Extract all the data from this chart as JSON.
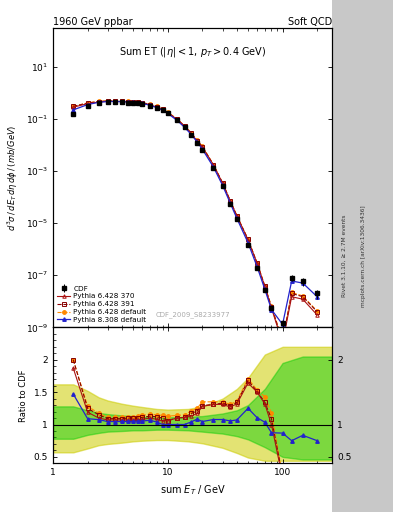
{
  "title_left": "1960 GeV ppbar",
  "title_right": "Soft QCD",
  "plot_label": "Sum ET (|\\eta| < 1, p_{T} > 0.4 GeV)",
  "watermark": "CDF_2009_S8233977",
  "xlim": [
    1.0,
    270.0
  ],
  "ylim_main": [
    1e-09,
    300.0
  ],
  "ylim_ratio": [
    0.4,
    2.5
  ],
  "cdf_x": [
    1.5,
    2.0,
    2.5,
    3.0,
    3.5,
    4.0,
    4.5,
    5.0,
    5.5,
    6.0,
    7.0,
    8.0,
    9.0,
    10.0,
    12.0,
    14.0,
    16.0,
    18.0,
    20.0,
    25.0,
    30.0,
    35.0,
    40.0,
    50.0,
    60.0,
    70.0,
    80.0,
    100.0,
    120.0,
    150.0,
    200.0
  ],
  "cdf_y": [
    0.15,
    0.32,
    0.4,
    0.44,
    0.44,
    0.43,
    0.42,
    0.41,
    0.39,
    0.37,
    0.31,
    0.26,
    0.21,
    0.16,
    0.088,
    0.047,
    0.024,
    0.012,
    0.0065,
    0.0013,
    0.00026,
    5.5e-05,
    1.4e-05,
    1.4e-06,
    1.9e-07,
    2.8e-08,
    5.5e-09,
    1.5e-09,
    8e-08,
    6e-08,
    2e-08
  ],
  "cdf_yerr_lo": [
    0.02,
    0.02,
    0.02,
    0.02,
    0.02,
    0.02,
    0.02,
    0.02,
    0.02,
    0.02,
    0.015,
    0.015,
    0.012,
    0.01,
    0.006,
    0.004,
    0.002,
    0.001,
    0.0005,
    0.0001,
    2e-05,
    5e-06,
    1e-06,
    1e-07,
    2e-08,
    3e-09,
    8e-10,
    5e-10,
    2e-08,
    2e-08,
    8e-09
  ],
  "cdf_yerr_hi": [
    0.02,
    0.02,
    0.02,
    0.02,
    0.02,
    0.02,
    0.02,
    0.02,
    0.02,
    0.02,
    0.015,
    0.015,
    0.012,
    0.01,
    0.006,
    0.004,
    0.002,
    0.001,
    0.0005,
    0.0001,
    2e-05,
    5e-06,
    1e-06,
    1e-07,
    2e-08,
    3e-09,
    8e-10,
    5e-10,
    2e-08,
    2e-08,
    8e-09
  ],
  "py6_370_x": [
    1.5,
    2.0,
    2.5,
    3.0,
    3.5,
    4.0,
    4.5,
    5.0,
    5.5,
    6.0,
    7.0,
    8.0,
    9.0,
    10.0,
    12.0,
    14.0,
    16.0,
    18.0,
    20.0,
    25.0,
    30.0,
    35.0,
    40.0,
    50.0,
    60.0,
    70.0,
    80.0,
    100.0,
    120.0,
    150.0,
    200.0
  ],
  "py6_370_y": [
    0.28,
    0.38,
    0.44,
    0.47,
    0.47,
    0.46,
    0.45,
    0.44,
    0.42,
    0.4,
    0.34,
    0.28,
    0.22,
    0.17,
    0.097,
    0.052,
    0.027,
    0.014,
    0.0083,
    0.0017,
    0.00034,
    7e-05,
    1.85e-05,
    2.3e-06,
    2.85e-07,
    3.7e-08,
    5.5e-09,
    2.5e-10,
    1.5e-08,
    1.2e-08,
    3e-09
  ],
  "py6_391_x": [
    1.5,
    2.0,
    2.5,
    3.0,
    3.5,
    4.0,
    4.5,
    5.0,
    5.5,
    6.0,
    7.0,
    8.0,
    9.0,
    10.0,
    12.0,
    14.0,
    16.0,
    18.0,
    20.0,
    25.0,
    30.0,
    35.0,
    40.0,
    50.0,
    60.0,
    70.0,
    80.0,
    100.0,
    120.0,
    150.0,
    200.0
  ],
  "py6_391_y": [
    0.3,
    0.4,
    0.46,
    0.48,
    0.48,
    0.47,
    0.46,
    0.45,
    0.43,
    0.41,
    0.35,
    0.29,
    0.23,
    0.17,
    0.097,
    0.052,
    0.028,
    0.0145,
    0.0084,
    0.0017,
    0.000345,
    7.1e-05,
    1.87e-05,
    2.35e-06,
    2.87e-07,
    3.75e-08,
    6e-09,
    3e-10,
    2e-08,
    1.5e-08,
    4e-09
  ],
  "py6_def_x": [
    1.5,
    2.0,
    2.5,
    3.0,
    3.5,
    4.0,
    4.5,
    5.0,
    5.5,
    6.0,
    7.0,
    8.0,
    9.0,
    10.0,
    12.0,
    14.0,
    16.0,
    18.0,
    20.0,
    25.0,
    30.0,
    35.0,
    40.0,
    50.0,
    60.0,
    70.0,
    80.0,
    100.0,
    120.0,
    150.0,
    200.0
  ],
  "py6_def_y": [
    0.3,
    0.41,
    0.47,
    0.49,
    0.49,
    0.48,
    0.47,
    0.46,
    0.44,
    0.42,
    0.36,
    0.3,
    0.24,
    0.18,
    0.1,
    0.054,
    0.029,
    0.015,
    0.0088,
    0.00175,
    0.00035,
    7.2e-05,
    1.9e-05,
    2.4e-06,
    2.9e-07,
    4e-08,
    6.5e-09,
    3.2e-10,
    2.2e-08,
    1.6e-08,
    4.2e-09
  ],
  "py8_def_x": [
    1.5,
    2.0,
    2.5,
    3.0,
    3.5,
    4.0,
    4.5,
    5.0,
    5.5,
    6.0,
    7.0,
    8.0,
    9.0,
    10.0,
    12.0,
    14.0,
    16.0,
    18.0,
    20.0,
    25.0,
    30.0,
    35.0,
    40.0,
    50.0,
    60.0,
    70.0,
    80.0,
    100.0,
    120.0,
    150.0,
    200.0
  ],
  "py8_def_y": [
    0.22,
    0.35,
    0.43,
    0.46,
    0.46,
    0.45,
    0.44,
    0.43,
    0.41,
    0.39,
    0.33,
    0.27,
    0.21,
    0.16,
    0.088,
    0.047,
    0.025,
    0.013,
    0.0068,
    0.0014,
    0.00028,
    5.8e-05,
    1.5e-05,
    1.75e-06,
    2.1e-07,
    2.9e-08,
    4.8e-09,
    1.3e-09,
    6e-08,
    5e-08,
    1.5e-08
  ],
  "ratio_x": [
    1.5,
    2.0,
    2.5,
    3.0,
    3.5,
    4.0,
    4.5,
    5.0,
    5.5,
    6.0,
    7.0,
    8.0,
    9.0,
    10.0,
    12.0,
    14.0,
    16.0,
    18.0,
    20.0,
    25.0,
    30.0,
    35.0,
    40.0,
    50.0,
    60.0,
    70.0,
    80.0,
    100.0,
    120.0,
    150.0,
    200.0
  ],
  "ratio_py6_370_y": [
    1.87,
    1.19,
    1.1,
    1.07,
    1.07,
    1.07,
    1.07,
    1.07,
    1.077,
    1.08,
    1.1,
    1.08,
    1.05,
    1.06,
    1.1,
    1.11,
    1.13,
    1.17,
    1.28,
    1.31,
    1.31,
    1.27,
    1.32,
    1.64,
    1.5,
    1.32,
    1.0,
    0.17,
    0.19,
    0.2,
    0.15
  ],
  "ratio_py6_391_y": [
    2.0,
    1.25,
    1.15,
    1.09,
    1.09,
    1.09,
    1.1,
    1.1,
    1.1,
    1.11,
    1.13,
    1.12,
    1.1,
    1.06,
    1.1,
    1.11,
    1.17,
    1.21,
    1.29,
    1.31,
    1.33,
    1.29,
    1.34,
    1.68,
    1.51,
    1.34,
    1.09,
    0.2,
    0.25,
    0.25,
    0.2
  ],
  "ratio_py6_def_y": [
    2.0,
    1.28,
    1.175,
    1.11,
    1.11,
    1.12,
    1.12,
    1.12,
    1.13,
    1.14,
    1.16,
    1.15,
    1.14,
    1.13,
    1.14,
    1.15,
    1.21,
    1.25,
    1.35,
    1.35,
    1.35,
    1.31,
    1.36,
    1.71,
    1.53,
    1.43,
    1.18,
    0.21,
    0.28,
    0.27,
    0.21
  ],
  "ratio_py8_def_y": [
    1.47,
    1.09,
    1.075,
    1.045,
    1.045,
    1.047,
    1.048,
    1.049,
    1.051,
    1.054,
    1.065,
    1.038,
    1.0,
    1.0,
    1.0,
    1.0,
    1.04,
    1.083,
    1.046,
    1.077,
    1.077,
    1.055,
    1.071,
    1.25,
    1.105,
    1.036,
    0.873,
    0.867,
    0.75,
    0.833,
    0.75
  ],
  "green_band_x": [
    1.0,
    1.5,
    2.0,
    2.5,
    3.0,
    4.0,
    5.0,
    6.0,
    8.0,
    10.0,
    15.0,
    20.0,
    30.0,
    40.0,
    50.0,
    70.0,
    100.0,
    150.0,
    200.0,
    270.0
  ],
  "green_band_lo": [
    0.78,
    0.78,
    0.84,
    0.87,
    0.89,
    0.9,
    0.91,
    0.91,
    0.92,
    0.92,
    0.91,
    0.89,
    0.86,
    0.82,
    0.77,
    0.65,
    0.5,
    0.46,
    0.46,
    0.46
  ],
  "green_band_hi": [
    1.28,
    1.28,
    1.22,
    1.18,
    1.16,
    1.14,
    1.13,
    1.12,
    1.11,
    1.11,
    1.12,
    1.13,
    1.17,
    1.22,
    1.3,
    1.55,
    1.95,
    2.05,
    2.05,
    2.05
  ],
  "yellow_band_x": [
    1.0,
    1.5,
    2.0,
    2.5,
    3.0,
    4.0,
    5.0,
    6.0,
    8.0,
    10.0,
    15.0,
    20.0,
    30.0,
    40.0,
    50.0,
    70.0,
    100.0,
    150.0,
    200.0,
    270.0
  ],
  "yellow_band_lo": [
    0.57,
    0.57,
    0.63,
    0.68,
    0.7,
    0.72,
    0.74,
    0.75,
    0.76,
    0.76,
    0.74,
    0.71,
    0.64,
    0.56,
    0.49,
    0.44,
    0.44,
    0.44,
    0.44,
    0.44
  ],
  "yellow_band_hi": [
    1.62,
    1.62,
    1.52,
    1.42,
    1.37,
    1.32,
    1.29,
    1.27,
    1.24,
    1.23,
    1.24,
    1.28,
    1.4,
    1.55,
    1.72,
    2.08,
    2.2,
    2.2,
    2.2,
    2.2
  ],
  "color_cdf": "#000000",
  "color_py6_370": "#aa1111",
  "color_py6_391": "#880000",
  "color_py6_def": "#ff8800",
  "color_py8_def": "#2222cc",
  "color_green": "#00cc00",
  "color_yellow": "#cccc00",
  "alpha_green": 0.45,
  "alpha_yellow": 0.55,
  "right_label1": "Rivet 3.1.10, ≥ 2.7M events",
  "right_label2": "mcplots.cern.ch [arXiv:1306.3436]"
}
